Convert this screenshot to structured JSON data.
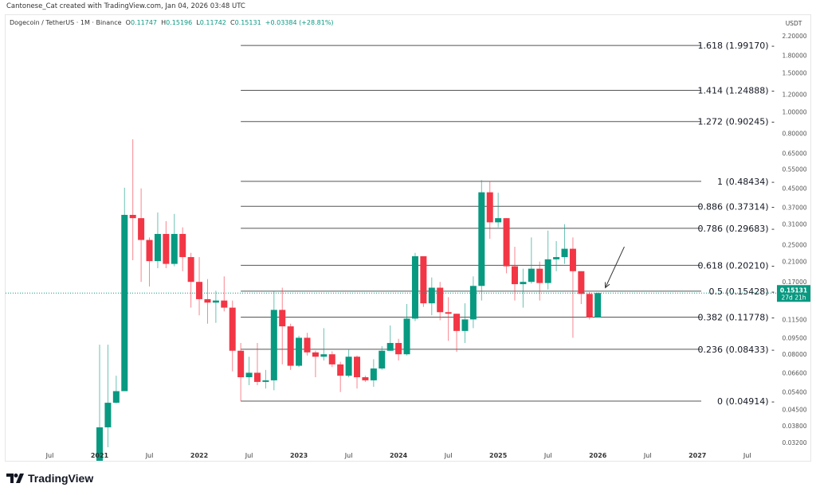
{
  "credit": "Cantonese_Cat created with TradingView.com, Jan 04, 2026 03:48 UTC",
  "legend": {
    "symbol": "Dogecoin / TetherUS · 1M · Binance",
    "o_label": "O",
    "o": "0.11747",
    "h_label": "H",
    "h": "0.15196",
    "l_label": "L",
    "l": "0.11742",
    "c_label": "C",
    "c": "0.15131",
    "change": "+0.03384 (+28.81%)"
  },
  "footer": {
    "brand": "TradingView"
  },
  "colors": {
    "up": "#089981",
    "down": "#f23645",
    "fib_line": "#555555",
    "price_line": "#089981"
  },
  "chart_data": {
    "type": "candlestick",
    "scale": "log",
    "currency_label": "USDT",
    "ylim": [
      0.029,
      2.3
    ],
    "current_price": {
      "price": "0.15131",
      "countdown": "27d 21h"
    },
    "y_ticks": [
      "2.20000",
      "1.80000",
      "1.50000",
      "1.20000",
      "1.00000",
      "0.80000",
      "0.65000",
      "0.55000",
      "0.45000",
      "0.37000",
      "0.31000",
      "0.25000",
      "0.21000",
      "0.17000",
      "0.11500",
      "0.09500",
      "0.08000",
      "0.06600",
      "0.05400",
      "0.04500",
      "0.03800",
      "0.03200"
    ],
    "x_ticks": [
      {
        "label": "Jul",
        "date": "2020-07",
        "major": false
      },
      {
        "label": "2021",
        "date": "2021-01",
        "major": true
      },
      {
        "label": "Jul",
        "date": "2021-07",
        "major": false
      },
      {
        "label": "2022",
        "date": "2022-01",
        "major": true
      },
      {
        "label": "Jul",
        "date": "2022-07",
        "major": false
      },
      {
        "label": "2023",
        "date": "2023-01",
        "major": true
      },
      {
        "label": "Jul",
        "date": "2023-07",
        "major": false
      },
      {
        "label": "2024",
        "date": "2024-01",
        "major": true
      },
      {
        "label": "Jul",
        "date": "2024-07",
        "major": false
      },
      {
        "label": "2025",
        "date": "2025-01",
        "major": true
      },
      {
        "label": "Jul",
        "date": "2025-07",
        "major": false
      },
      {
        "label": "2026",
        "date": "2026-01",
        "major": true
      },
      {
        "label": "Jul",
        "date": "2026-07",
        "major": false
      },
      {
        "label": "2027",
        "date": "2027-01",
        "major": true
      },
      {
        "label": "Jul",
        "date": "2027-07",
        "major": false
      }
    ],
    "fib_start": "2022-06",
    "fib_levels": [
      {
        "label": "1.618 (1.99170) -",
        "price": 1.9917
      },
      {
        "label": "1.414 (1.24888) -",
        "price": 1.24888
      },
      {
        "label": "1.272 (0.90245) -",
        "price": 0.90245
      },
      {
        "label": "1 (0.48434) -",
        "price": 0.48434
      },
      {
        "label": "0.886 (0.37314) -",
        "price": 0.37314
      },
      {
        "label": "0.786 (0.29683) -",
        "price": 0.29683
      },
      {
        "label": "0.618 (0.20210) -",
        "price": 0.2021
      },
      {
        "label": "0.5 (0.15428) -",
        "price": 0.15428
      },
      {
        "label": "0.382 (0.11778) -",
        "price": 0.11778
      },
      {
        "label": "0.236 (0.08433) -",
        "price": 0.08433
      },
      {
        "label": "0 (0.04914) -",
        "price": 0.04914
      }
    ],
    "annotation_arrow": {
      "from": {
        "date": "2026-04",
        "price": 0.245
      },
      "to": {
        "date": "2026-02",
        "price": 0.16
      }
    },
    "candles": [
      {
        "d": "2021-01",
        "o": 0.0047,
        "h": 0.0884,
        "l": 0.0047,
        "c": 0.0374
      },
      {
        "d": "2021-02",
        "o": 0.0374,
        "h": 0.0884,
        "l": 0.0304,
        "c": 0.0483
      },
      {
        "d": "2021-03",
        "o": 0.0483,
        "h": 0.064,
        "l": 0.048,
        "c": 0.0545
      },
      {
        "d": "2021-04",
        "o": 0.0545,
        "h": 0.453,
        "l": 0.0545,
        "c": 0.3415
      },
      {
        "d": "2021-05",
        "o": 0.3415,
        "h": 0.75,
        "l": 0.213,
        "c": 0.33
      },
      {
        "d": "2021-06",
        "o": 0.33,
        "h": 0.45,
        "l": 0.17,
        "c": 0.263
      },
      {
        "d": "2021-07",
        "o": 0.263,
        "h": 0.27,
        "l": 0.162,
        "c": 0.211
      },
      {
        "d": "2021-08",
        "o": 0.211,
        "h": 0.35,
        "l": 0.196,
        "c": 0.28
      },
      {
        "d": "2021-09",
        "o": 0.28,
        "h": 0.32,
        "l": 0.196,
        "c": 0.205
      },
      {
        "d": "2021-10",
        "o": 0.205,
        "h": 0.345,
        "l": 0.2,
        "c": 0.28
      },
      {
        "d": "2021-11",
        "o": 0.28,
        "h": 0.3,
        "l": 0.19,
        "c": 0.22
      },
      {
        "d": "2021-12",
        "o": 0.22,
        "h": 0.23,
        "l": 0.13,
        "c": 0.17
      },
      {
        "d": "2022-01",
        "o": 0.17,
        "h": 0.22,
        "l": 0.12,
        "c": 0.142
      },
      {
        "d": "2022-02",
        "o": 0.142,
        "h": 0.175,
        "l": 0.11,
        "c": 0.137
      },
      {
        "d": "2022-03",
        "o": 0.137,
        "h": 0.155,
        "l": 0.111,
        "c": 0.14
      },
      {
        "d": "2022-04",
        "o": 0.14,
        "h": 0.18,
        "l": 0.125,
        "c": 0.13
      },
      {
        "d": "2022-05",
        "o": 0.13,
        "h": 0.14,
        "l": 0.067,
        "c": 0.083
      },
      {
        "d": "2022-06",
        "o": 0.083,
        "h": 0.09,
        "l": 0.0491,
        "c": 0.063
      },
      {
        "d": "2022-07",
        "o": 0.063,
        "h": 0.078,
        "l": 0.058,
        "c": 0.066
      },
      {
        "d": "2022-08",
        "o": 0.066,
        "h": 0.09,
        "l": 0.058,
        "c": 0.06
      },
      {
        "d": "2022-09",
        "o": 0.06,
        "h": 0.068,
        "l": 0.056,
        "c": 0.061
      },
      {
        "d": "2022-10",
        "o": 0.061,
        "h": 0.155,
        "l": 0.055,
        "c": 0.127
      },
      {
        "d": "2022-11",
        "o": 0.127,
        "h": 0.16,
        "l": 0.072,
        "c": 0.107
      },
      {
        "d": "2022-12",
        "o": 0.107,
        "h": 0.11,
        "l": 0.068,
        "c": 0.071
      },
      {
        "d": "2023-01",
        "o": 0.071,
        "h": 0.097,
        "l": 0.07,
        "c": 0.095
      },
      {
        "d": "2023-02",
        "o": 0.095,
        "h": 0.1,
        "l": 0.079,
        "c": 0.0816
      },
      {
        "d": "2023-03",
        "o": 0.0816,
        "h": 0.083,
        "l": 0.063,
        "c": 0.078
      },
      {
        "d": "2023-04",
        "o": 0.078,
        "h": 0.105,
        "l": 0.075,
        "c": 0.08
      },
      {
        "d": "2023-05",
        "o": 0.08,
        "h": 0.0825,
        "l": 0.07,
        "c": 0.072
      },
      {
        "d": "2023-06",
        "o": 0.072,
        "h": 0.074,
        "l": 0.054,
        "c": 0.064
      },
      {
        "d": "2023-07",
        "o": 0.064,
        "h": 0.084,
        "l": 0.063,
        "c": 0.078
      },
      {
        "d": "2023-08",
        "o": 0.078,
        "h": 0.079,
        "l": 0.056,
        "c": 0.063
      },
      {
        "d": "2023-09",
        "o": 0.063,
        "h": 0.064,
        "l": 0.06,
        "c": 0.061
      },
      {
        "d": "2023-10",
        "o": 0.061,
        "h": 0.076,
        "l": 0.057,
        "c": 0.069
      },
      {
        "d": "2023-11",
        "o": 0.069,
        "h": 0.087,
        "l": 0.068,
        "c": 0.083
      },
      {
        "d": "2023-12",
        "o": 0.083,
        "h": 0.108,
        "l": 0.083,
        "c": 0.09
      },
      {
        "d": "2024-01",
        "o": 0.09,
        "h": 0.094,
        "l": 0.075,
        "c": 0.08
      },
      {
        "d": "2024-02",
        "o": 0.08,
        "h": 0.135,
        "l": 0.079,
        "c": 0.116
      },
      {
        "d": "2024-03",
        "o": 0.116,
        "h": 0.23,
        "l": 0.113,
        "c": 0.222
      },
      {
        "d": "2024-04",
        "o": 0.222,
        "h": 0.222,
        "l": 0.131,
        "c": 0.136
      },
      {
        "d": "2024-05",
        "o": 0.136,
        "h": 0.178,
        "l": 0.12,
        "c": 0.16
      },
      {
        "d": "2024-06",
        "o": 0.16,
        "h": 0.17,
        "l": 0.114,
        "c": 0.124
      },
      {
        "d": "2024-07",
        "o": 0.124,
        "h": 0.145,
        "l": 0.092,
        "c": 0.122
      },
      {
        "d": "2024-08",
        "o": 0.122,
        "h": 0.122,
        "l": 0.082,
        "c": 0.102
      },
      {
        "d": "2024-09",
        "o": 0.102,
        "h": 0.136,
        "l": 0.09,
        "c": 0.115
      },
      {
        "d": "2024-10",
        "o": 0.115,
        "h": 0.18,
        "l": 0.105,
        "c": 0.163
      },
      {
        "d": "2024-11",
        "o": 0.163,
        "h": 0.49,
        "l": 0.14,
        "c": 0.432
      },
      {
        "d": "2024-12",
        "o": 0.432,
        "h": 0.485,
        "l": 0.266,
        "c": 0.316
      },
      {
        "d": "2025-01",
        "o": 0.316,
        "h": 0.43,
        "l": 0.3,
        "c": 0.33
      },
      {
        "d": "2025-02",
        "o": 0.33,
        "h": 0.33,
        "l": 0.186,
        "c": 0.2
      },
      {
        "d": "2025-03",
        "o": 0.2,
        "h": 0.245,
        "l": 0.14,
        "c": 0.166
      },
      {
        "d": "2025-04",
        "o": 0.166,
        "h": 0.195,
        "l": 0.13,
        "c": 0.17
      },
      {
        "d": "2025-05",
        "o": 0.17,
        "h": 0.27,
        "l": 0.167,
        "c": 0.195
      },
      {
        "d": "2025-06",
        "o": 0.195,
        "h": 0.21,
        "l": 0.14,
        "c": 0.168
      },
      {
        "d": "2025-07",
        "o": 0.168,
        "h": 0.29,
        "l": 0.157,
        "c": 0.215
      },
      {
        "d": "2025-08",
        "o": 0.215,
        "h": 0.26,
        "l": 0.19,
        "c": 0.22
      },
      {
        "d": "2025-09",
        "o": 0.22,
        "h": 0.31,
        "l": 0.205,
        "c": 0.24
      },
      {
        "d": "2025-10",
        "o": 0.24,
        "h": 0.27,
        "l": 0.095,
        "c": 0.19
      },
      {
        "d": "2025-11",
        "o": 0.19,
        "h": 0.19,
        "l": 0.135,
        "c": 0.15
      },
      {
        "d": "2025-12",
        "o": 0.15,
        "h": 0.153,
        "l": 0.115,
        "c": 0.11747
      },
      {
        "d": "2026-01",
        "o": 0.11747,
        "h": 0.15196,
        "l": 0.11742,
        "c": 0.15131
      }
    ]
  }
}
